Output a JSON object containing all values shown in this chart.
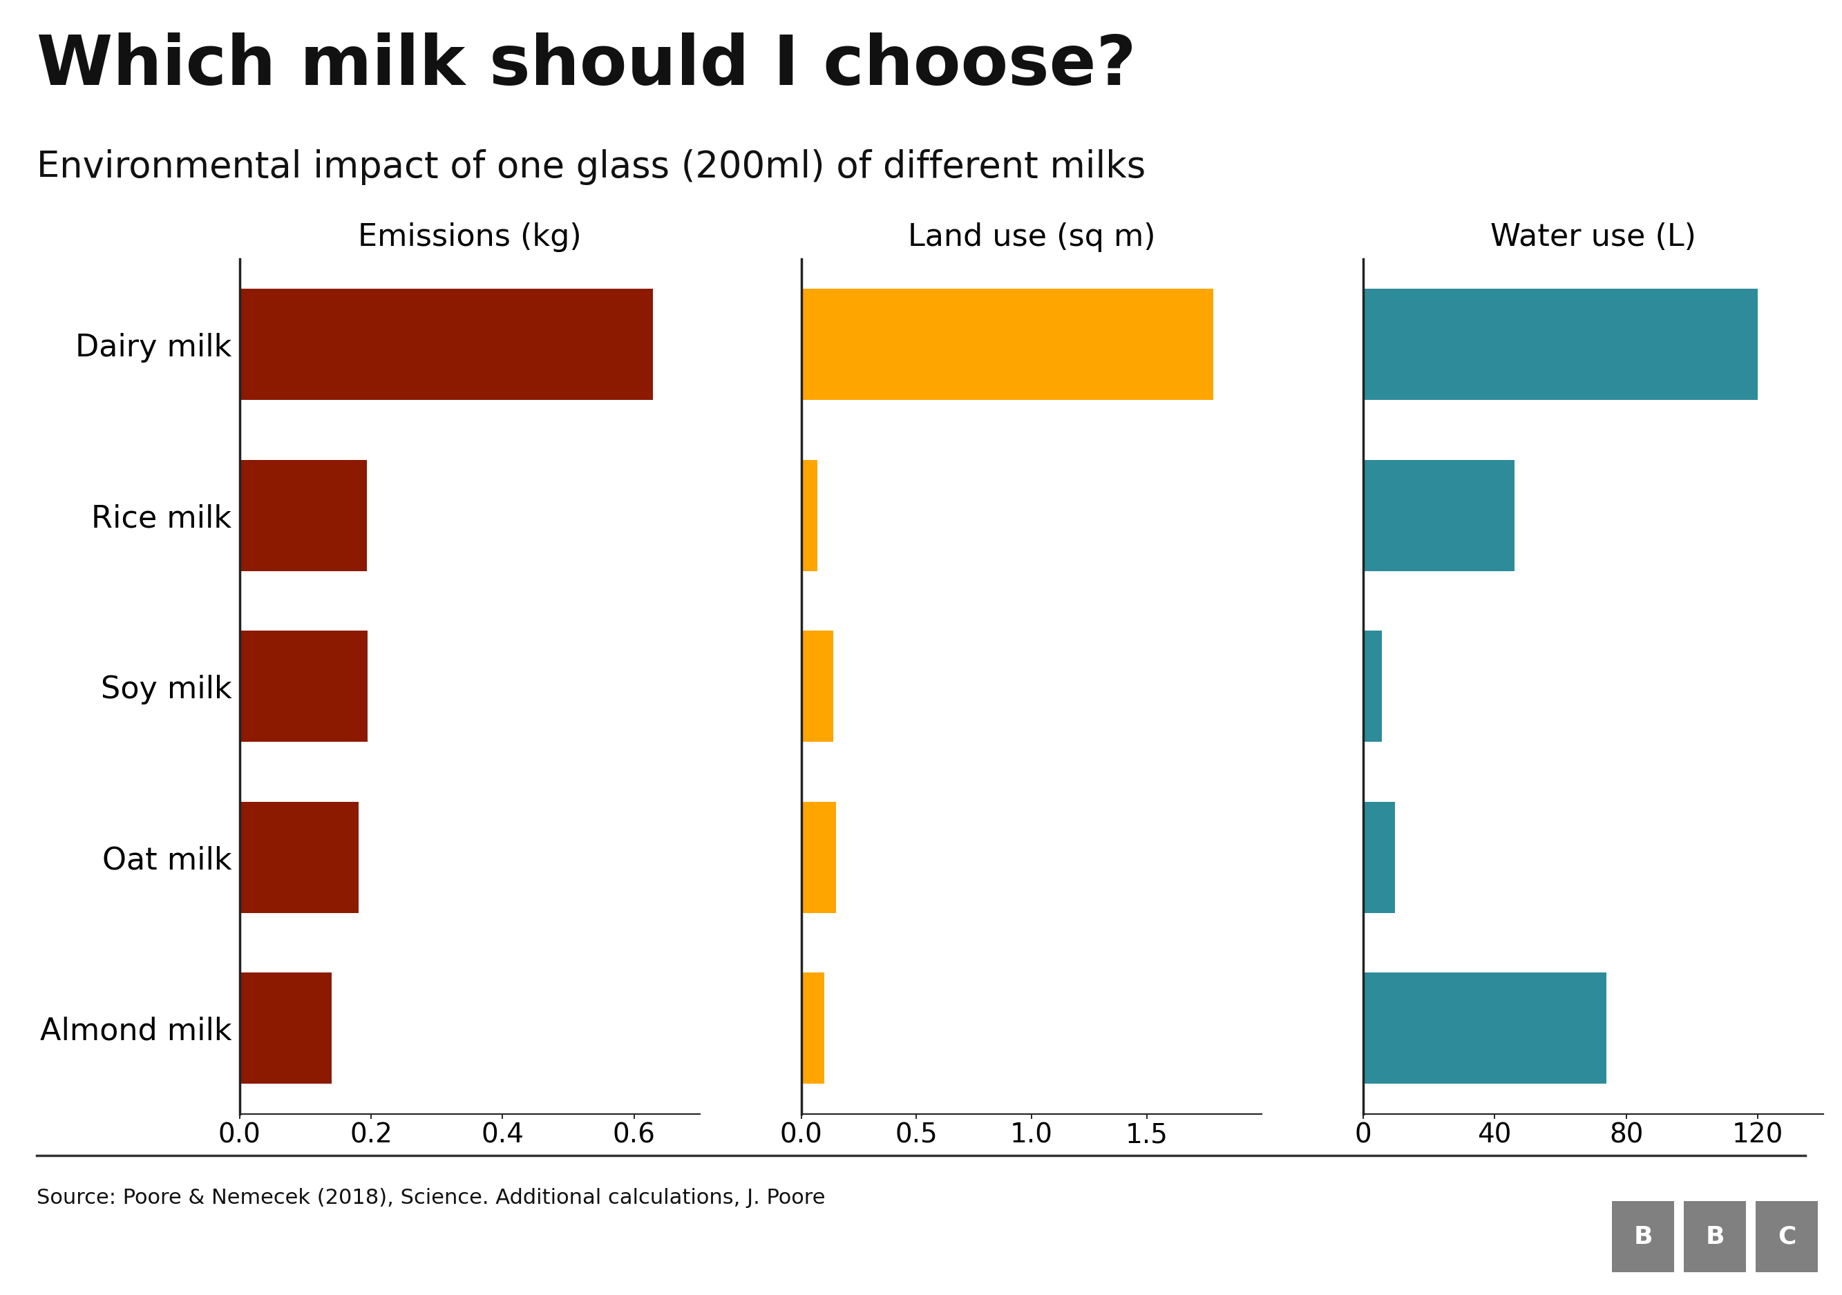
{
  "title": "Which milk should I choose?",
  "subtitle": "Environmental impact of one glass (200ml) of different milks",
  "categories": [
    "Dairy milk",
    "Rice milk",
    "Soy milk",
    "Oat milk",
    "Almond milk"
  ],
  "emissions": [
    0.628,
    0.194,
    0.195,
    0.181,
    0.14
  ],
  "land_use": [
    1.79,
    0.07,
    0.14,
    0.15,
    0.1
  ],
  "water_use": [
    120.0,
    46.0,
    5.6,
    9.8,
    74.0
  ],
  "emissions_color": "#8B1A00",
  "land_color": "#FFA500",
  "water_color": "#2E8B9A",
  "bbc_bg_color": "#808080",
  "emissions_xlim": [
    0,
    0.7
  ],
  "land_xlim": [
    0,
    2.0
  ],
  "water_xlim": [
    0,
    140
  ],
  "emissions_xticks": [
    0.0,
    0.2,
    0.4,
    0.6
  ],
  "land_xticks": [
    0.0,
    0.5,
    1.0,
    1.5
  ],
  "water_xticks": [
    0,
    40,
    80,
    120
  ],
  "emissions_label": "Emissions (kg)",
  "land_label": "Land use (sq m)",
  "water_label": "Water use (L)",
  "source_text": "Source: Poore & Nemecek (2018), Science. Additional calculations, J. Poore",
  "bbc_text": "BBC",
  "background_color": "#FFFFFF",
  "title_fontsize": 72,
  "subtitle_fontsize": 38,
  "axis_label_fontsize": 32,
  "tick_fontsize": 28,
  "category_fontsize": 32,
  "source_fontsize": 22,
  "bar_height": 0.65
}
